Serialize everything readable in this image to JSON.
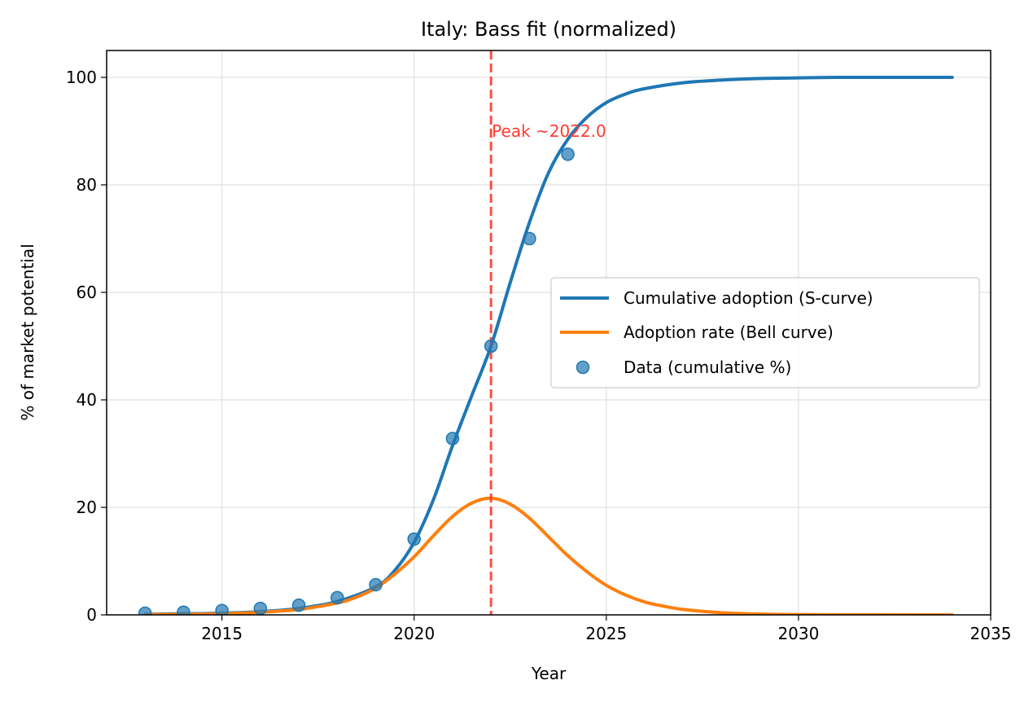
{
  "chart_data": {
    "type": "line",
    "title": "Italy: Bass fit (normalized)",
    "xlabel": "Year",
    "ylabel": "% of market potential",
    "xlim": [
      2012.0,
      2035.0
    ],
    "ylim": [
      0,
      105
    ],
    "xticks": [
      2015,
      2020,
      2025,
      2030,
      2035
    ],
    "yticks": [
      0,
      20,
      40,
      60,
      80,
      100
    ],
    "grid": true,
    "legend_position": "center-right",
    "series": [
      {
        "name": "Cumulative adoption (S-curve)",
        "kind": "line",
        "color": "#1f77b4",
        "x": [
          2013,
          2014,
          2015,
          2016,
          2017,
          2018,
          2019,
          2019.5,
          2020,
          2020.5,
          2021,
          2021.5,
          2022,
          2022.5,
          2023,
          2023.5,
          2024,
          2024.5,
          2025,
          2025.5,
          2026,
          2027,
          2028,
          2029,
          2030,
          2031,
          2032,
          2033,
          2034
        ],
        "y": [
          0.1,
          0.2,
          0.3,
          0.6,
          1.2,
          2.5,
          5.2,
          8.3,
          13.5,
          21.4,
          31.5,
          40.8,
          50.0,
          61.8,
          73.0,
          82.3,
          88.5,
          92.6,
          95.3,
          96.9,
          97.9,
          99.0,
          99.5,
          99.8,
          99.9,
          100.0,
          100.0,
          100.0,
          100.0
        ]
      },
      {
        "name": "Adoption rate (Bell curve)",
        "kind": "line",
        "color": "#ff7f0e",
        "x": [
          2013,
          2014,
          2015,
          2016,
          2017,
          2018,
          2018.5,
          2019,
          2019.5,
          2020,
          2020.5,
          2021,
          2021.5,
          2022,
          2022.5,
          2023,
          2023.5,
          2024,
          2024.5,
          2025,
          2025.5,
          2026,
          2026.5,
          2027,
          2028,
          2029,
          2030,
          2031,
          2032,
          2033,
          2034
        ],
        "y": [
          0.05,
          0.1,
          0.2,
          0.5,
          1.0,
          2.2,
          3.3,
          5.0,
          7.6,
          10.8,
          14.7,
          18.3,
          20.8,
          21.7,
          20.6,
          18.0,
          14.5,
          11.0,
          8.0,
          5.5,
          3.7,
          2.4,
          1.6,
          1.0,
          0.4,
          0.15,
          0.05,
          0.02,
          0.01,
          0.0,
          0.0
        ]
      },
      {
        "name": "Data (cumulative %)",
        "kind": "scatter",
        "color": "#1f77b4",
        "x": [
          2013,
          2014,
          2015,
          2016,
          2017,
          2018,
          2019,
          2020,
          2021,
          2022,
          2023,
          2024
        ],
        "y": [
          0.3,
          0.5,
          0.8,
          1.2,
          1.8,
          3.2,
          5.6,
          14.1,
          32.8,
          50.0,
          70.0,
          85.7
        ]
      }
    ],
    "peak_line": {
      "x": 2022.0,
      "color": "#ff3b30",
      "label": "Peak ~2022.0",
      "label_y": 90
    }
  }
}
